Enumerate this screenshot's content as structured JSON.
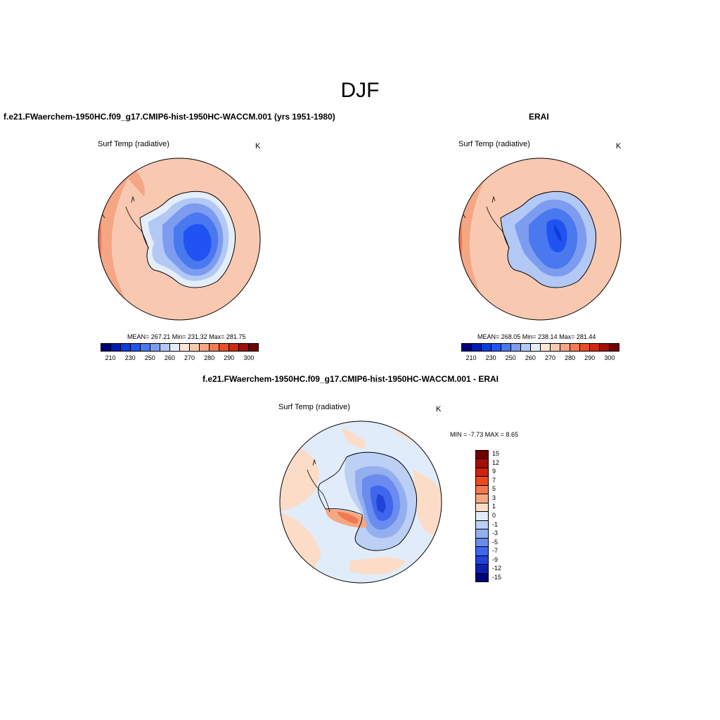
{
  "figure": {
    "title": "DJF"
  },
  "panels": {
    "model": {
      "title": "f.e21.FWaerchem-1950HC.f09_g17.CMIP6-hist-1950HC-WACCM.001 (yrs 1951-1980)",
      "variable": "Surf Temp (radiative)",
      "units": "K",
      "stats": "MEAN= 267.21  Min= 231.32  Max= 281.75"
    },
    "obs": {
      "title": "ERAI",
      "variable": "Surf Temp (radiative)",
      "units": "K",
      "stats": "MEAN= 268.05  Min= 238.14  Max= 281.44"
    },
    "diff": {
      "title": "f.e21.FWaerchem-1950HC.f09_g17.CMIP6-hist-1950HC-WACCM.001 - ERAI",
      "variable": "Surf Temp (radiative)",
      "units": "K",
      "stats": "MIN =  -7.73 MAX =   8.65"
    }
  },
  "colorbar_abs": {
    "colors": [
      "#00007a",
      "#001cae",
      "#0b3dd9",
      "#2153f2",
      "#4a78ee",
      "#7d9cf0",
      "#b2c8f5",
      "#e4eefa",
      "#fde6d8",
      "#f9c8b0",
      "#f5a685",
      "#f07a55",
      "#e84e25",
      "#cd2a10",
      "#a01008",
      "#730000"
    ],
    "labels": [
      "210",
      "230",
      "250",
      "260",
      "270",
      "280",
      "290",
      "300"
    ]
  },
  "colorbar_diff": {
    "colors": [
      "#730000",
      "#a01008",
      "#d0220c",
      "#ea4a1c",
      "#f07a50",
      "#f6a883",
      "#fcdcc7",
      "#e1ecfa",
      "#bccff4",
      "#93aff0",
      "#6a8cee",
      "#4066ee",
      "#2044da",
      "#0c22ad",
      "#00067a"
    ],
    "labels": [
      "15",
      "12",
      "9",
      "7",
      "5",
      "3",
      "1",
      "0",
      "-1",
      "-3",
      "-5",
      "-7",
      "-9",
      "-12",
      "-15"
    ]
  }
}
